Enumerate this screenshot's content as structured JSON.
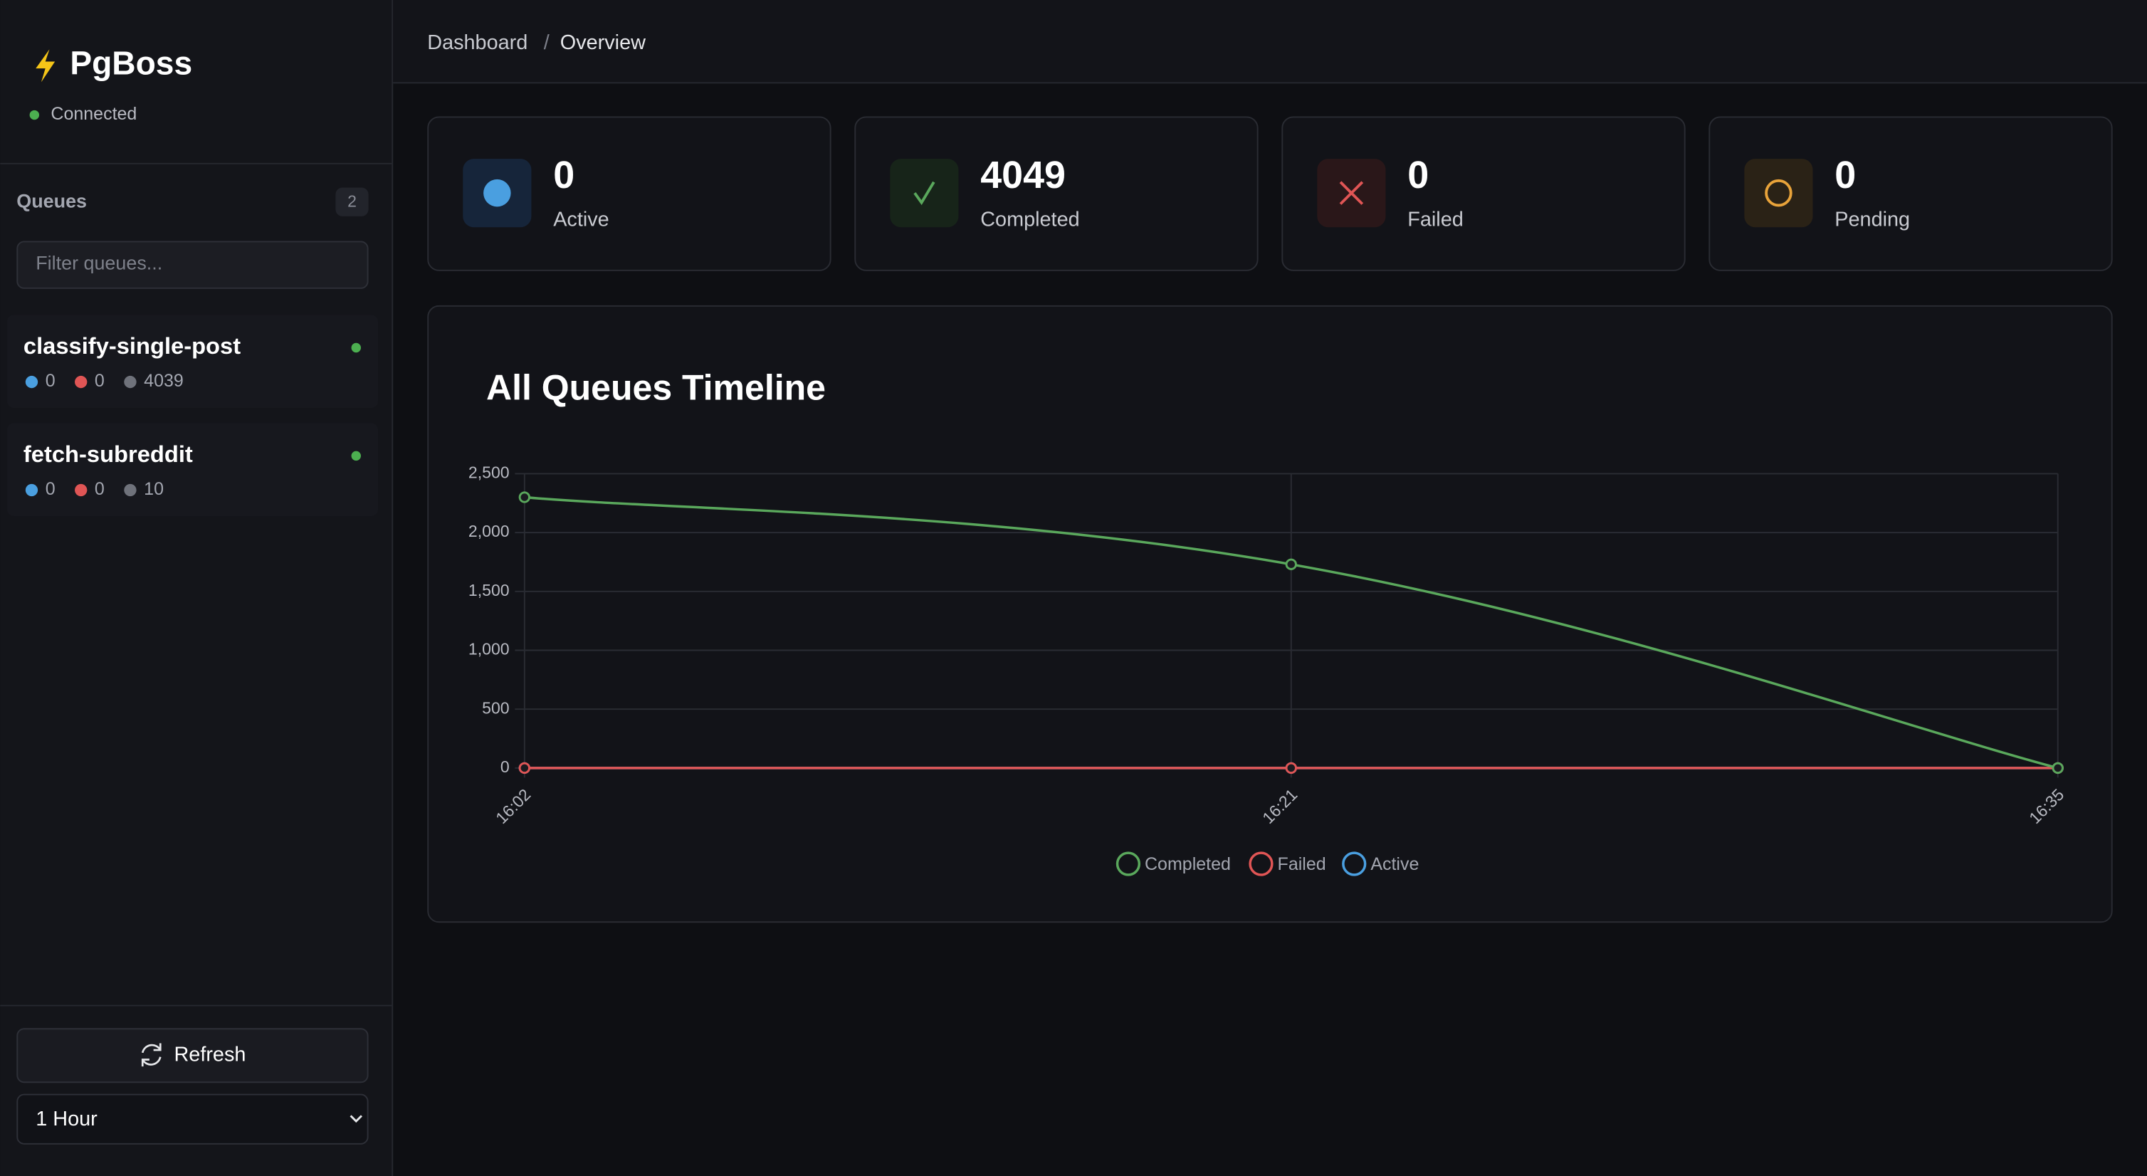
{
  "sidebar": {
    "brand": "PgBoss",
    "status": "Connected",
    "queues_title": "Queues",
    "queue_count": 2,
    "filter_placeholder": "Filter queues...",
    "queues": [
      {
        "name": "classify-single-post",
        "active": 0,
        "failed": 0,
        "completed": 4039
      },
      {
        "name": "fetch-subreddit",
        "active": 0,
        "failed": 0,
        "completed": 10
      }
    ],
    "refresh": "Refresh",
    "range": "1 Hour"
  },
  "breadcrumb": {
    "items": [
      "Dashboard",
      "Overview"
    ],
    "separator": "/"
  },
  "stats": [
    {
      "value": 0,
      "label": "Active"
    },
    {
      "value": 4049,
      "label": "Completed"
    },
    {
      "value": 0,
      "label": "Failed"
    },
    {
      "value": 0,
      "label": "Pending"
    }
  ],
  "chart_data": {
    "type": "line",
    "title": "All Queues Timeline",
    "categories": [
      "16:02",
      "16:21",
      "16:35"
    ],
    "series": [
      {
        "name": "Completed",
        "color": "#5aa85c",
        "values": [
          2300,
          1730,
          0
        ]
      },
      {
        "name": "Failed",
        "color": "#e05555",
        "values": [
          0,
          0,
          0
        ]
      },
      {
        "name": "Active",
        "color": "#4a9fe0",
        "values": [
          0,
          0,
          0
        ]
      }
    ],
    "ylim": [
      0,
      2500
    ],
    "yticks": [
      0,
      500,
      {
        "value": 1000,
        "label": "1,000"
      },
      {
        "value": 1500,
        "label": "1,500"
      },
      {
        "value": 2000,
        "label": "2,000"
      },
      {
        "value": 2500,
        "label": "2,500"
      }
    ],
    "grid": true
  }
}
